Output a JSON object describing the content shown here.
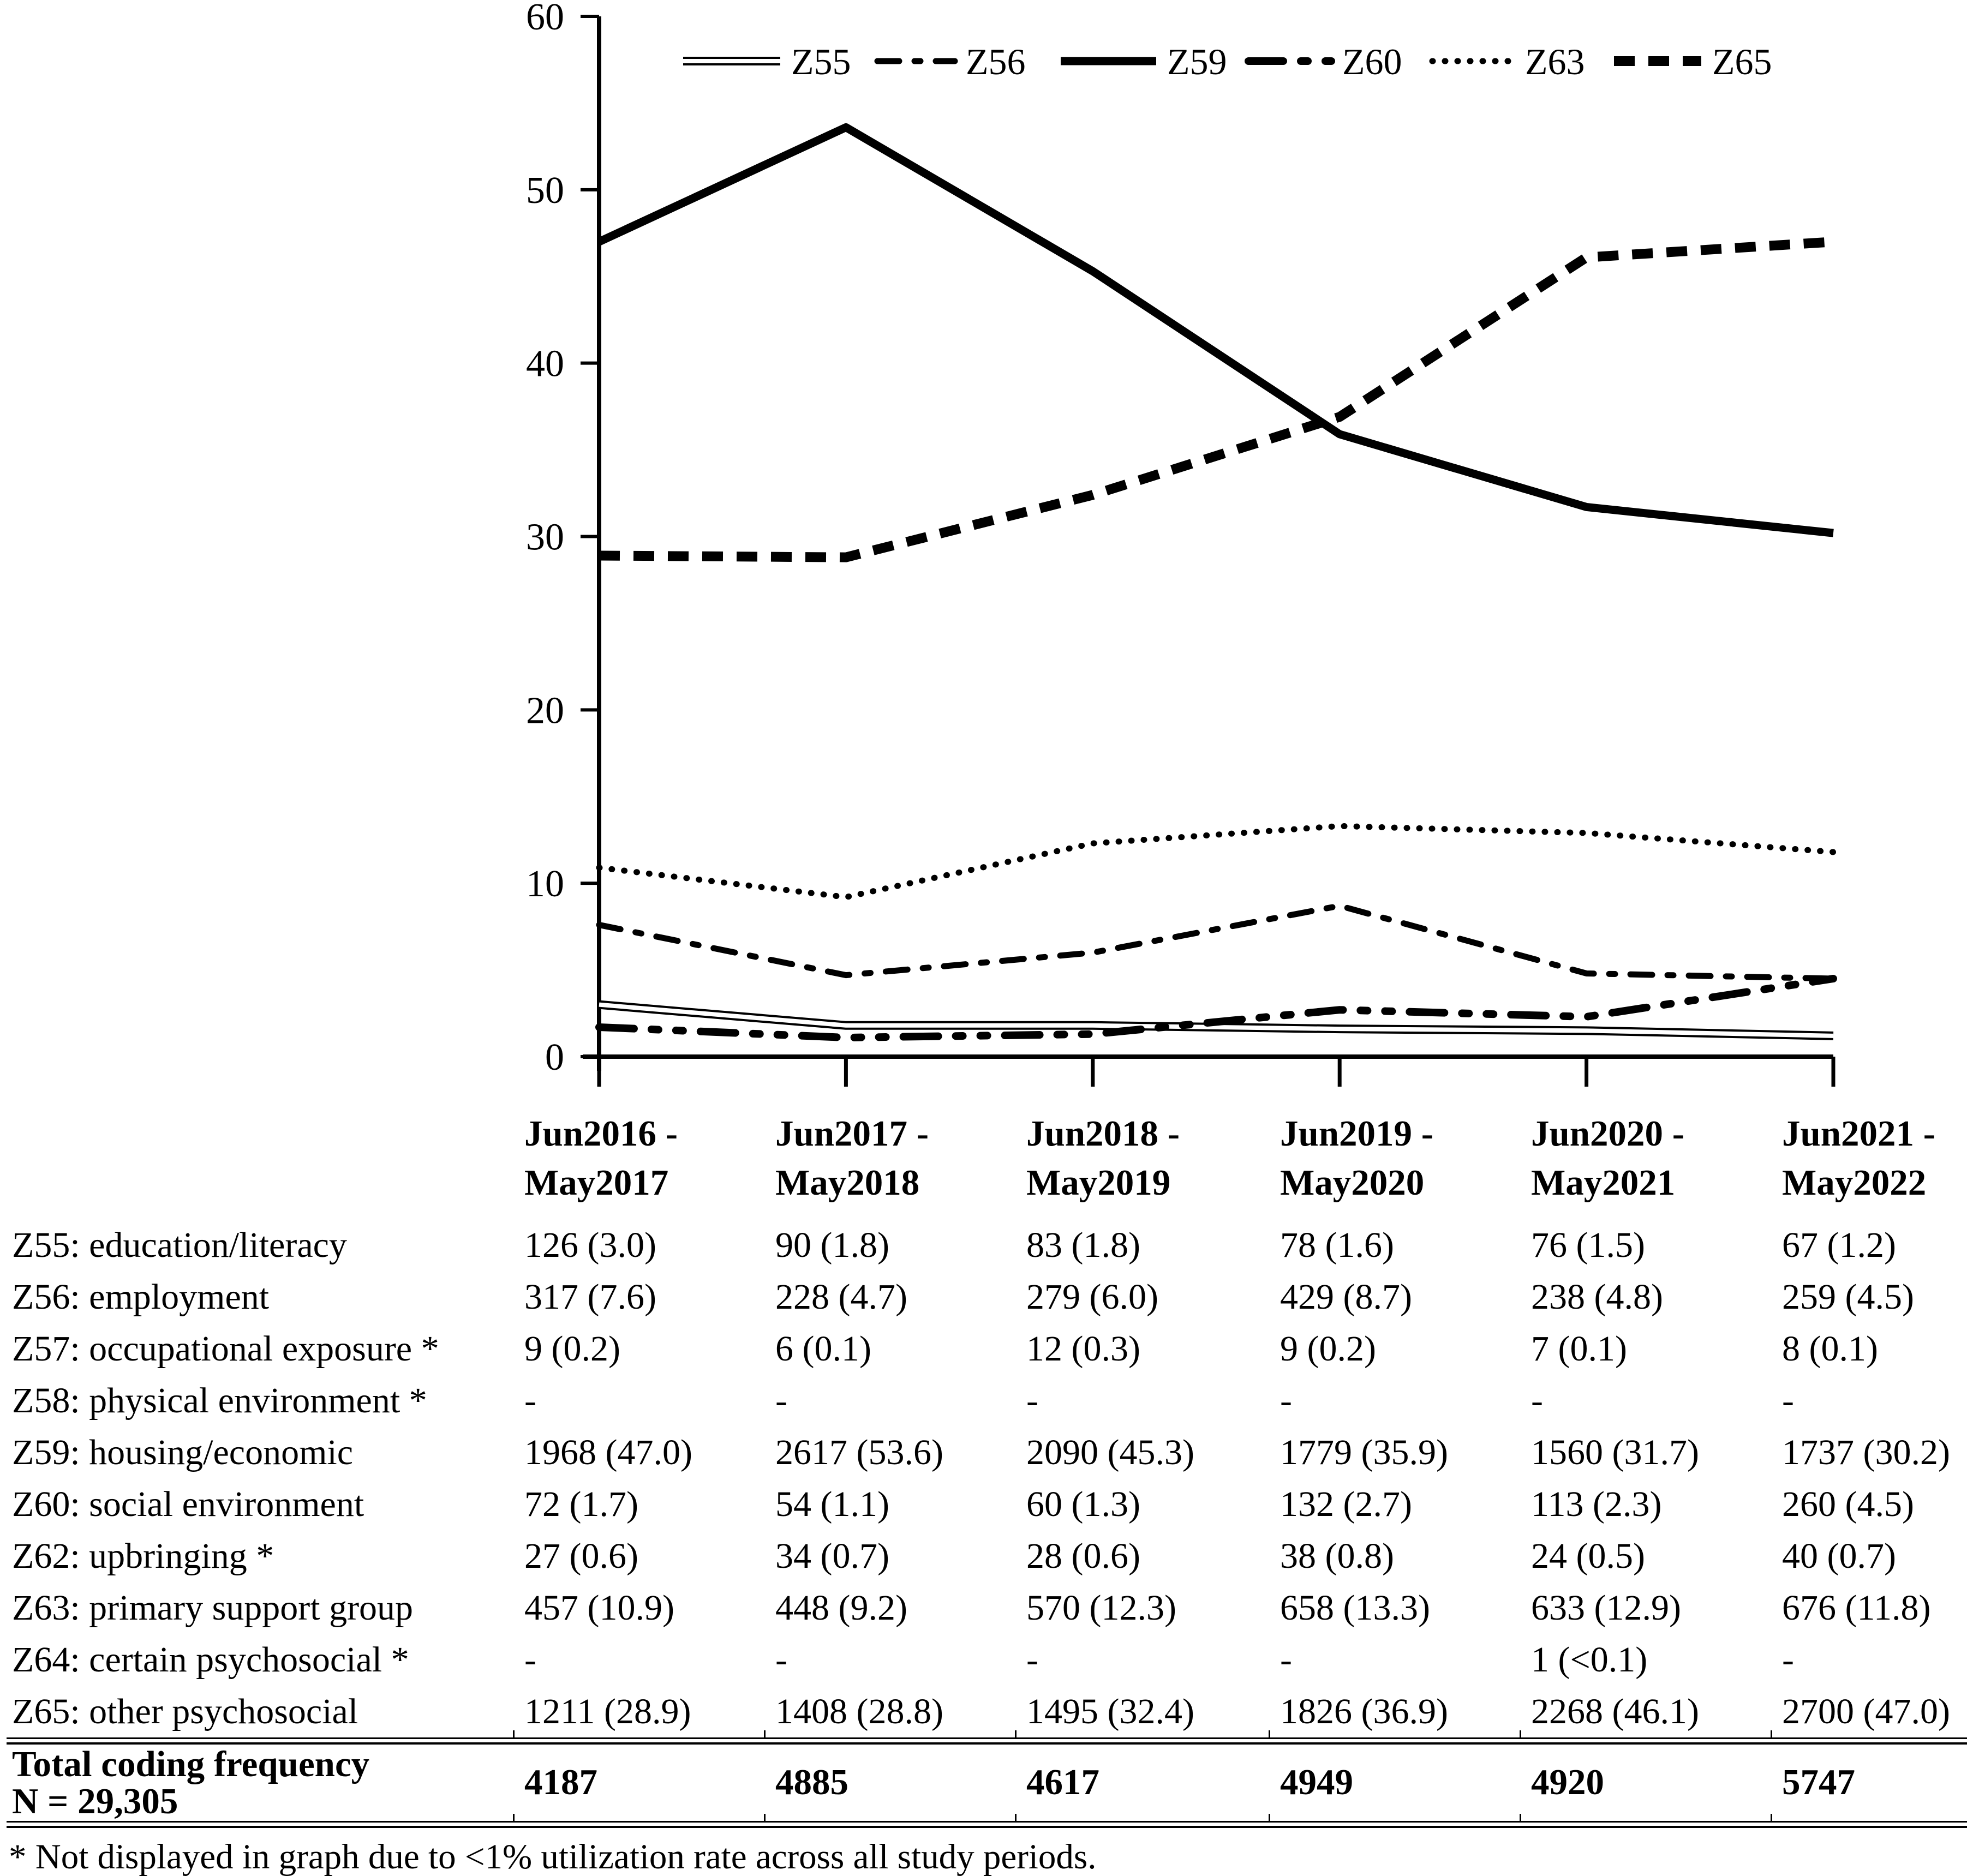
{
  "figure": {
    "footnote": "* Not displayed in graph due to <1% utilization rate across all study periods."
  },
  "chart_data": {
    "type": "line",
    "x": [
      "Jun2016 - May2017",
      "Jun2017 - May2018",
      "Jun2018 - May2019",
      "Jun2019 - May2020",
      "Jun2020 - May2021",
      "Jun2021 - May2022"
    ],
    "ylim": [
      0,
      60
    ],
    "yticks": [
      0,
      10,
      20,
      30,
      40,
      50,
      60
    ],
    "grid": false,
    "legend_position": "top",
    "line_color": "#000000",
    "series": [
      {
        "name": "Z55",
        "style": "double-thin",
        "values": [
          3.0,
          1.8,
          1.8,
          1.6,
          1.5,
          1.2
        ]
      },
      {
        "name": "Z56",
        "style": "dash-dot",
        "values": [
          7.6,
          4.7,
          6.0,
          8.7,
          4.8,
          4.5
        ]
      },
      {
        "name": "Z59",
        "style": "solid-thick",
        "values": [
          47.0,
          53.6,
          45.3,
          35.9,
          31.7,
          30.2
        ]
      },
      {
        "name": "Z60",
        "style": "dash-dot-dot",
        "values": [
          1.7,
          1.1,
          1.3,
          2.7,
          2.3,
          4.5
        ]
      },
      {
        "name": "Z63",
        "style": "dotted",
        "values": [
          10.9,
          9.2,
          12.3,
          13.3,
          12.9,
          11.8
        ]
      },
      {
        "name": "Z65",
        "style": "dashed-heavy",
        "values": [
          28.9,
          28.8,
          32.4,
          36.9,
          46.1,
          47.0
        ]
      }
    ]
  },
  "table": {
    "col_headers": [
      [
        "Jun2016 -",
        "May2017"
      ],
      [
        "Jun2017 -",
        "May2018"
      ],
      [
        "Jun2018 -",
        "May2019"
      ],
      [
        "Jun2019 -",
        "May2020"
      ],
      [
        "Jun2020 -",
        "May2021"
      ],
      [
        "Jun2021 -",
        "May2022"
      ]
    ],
    "rows": [
      {
        "label": "Z55: education/literacy",
        "values": [
          "126 (3.0)",
          "90 (1.8)",
          "83 (1.8)",
          "78 (1.6)",
          "76 (1.5)",
          "67 (1.2)"
        ]
      },
      {
        "label": "Z56: employment",
        "values": [
          "317 (7.6)",
          "228 (4.7)",
          "279 (6.0)",
          "429 (8.7)",
          "238 (4.8)",
          "259 (4.5)"
        ]
      },
      {
        "label": "Z57: occupational exposure *",
        "values": [
          "9 (0.2)",
          "6 (0.1)",
          "12 (0.3)",
          "9 (0.2)",
          "7 (0.1)",
          "8 (0.1)"
        ]
      },
      {
        "label": "Z58: physical environment *",
        "values": [
          "-",
          "-",
          "-",
          "-",
          "-",
          "-"
        ]
      },
      {
        "label": "Z59: housing/economic",
        "values": [
          "1968 (47.0)",
          "2617 (53.6)",
          "2090 (45.3)",
          "1779 (35.9)",
          "1560 (31.7)",
          "1737 (30.2)"
        ]
      },
      {
        "label": "Z60: social environment",
        "values": [
          "72 (1.7)",
          "54 (1.1)",
          "60 (1.3)",
          "132 (2.7)",
          "113 (2.3)",
          "260 (4.5)"
        ]
      },
      {
        "label": "Z62: upbringing *",
        "values": [
          "27 (0.6)",
          "34 (0.7)",
          "28 (0.6)",
          "38 (0.8)",
          "24 (0.5)",
          "40 (0.7)"
        ]
      },
      {
        "label": "Z63: primary support group",
        "values": [
          "457 (10.9)",
          "448 (9.2)",
          "570 (12.3)",
          "658 (13.3)",
          "633 (12.9)",
          "676 (11.8)"
        ]
      },
      {
        "label": "Z64: certain psychosocial *",
        "values": [
          "-",
          "-",
          "-",
          "-",
          "1 (<0.1)",
          "-"
        ]
      },
      {
        "label": "Z65: other psychosocial",
        "values": [
          "1211 (28.9)",
          "1408 (28.8)",
          "1495 (32.4)",
          "1826 (36.9)",
          "2268 (46.1)",
          "2700 (47.0)"
        ]
      }
    ],
    "total_row": {
      "label_line1": "Total coding frequency",
      "label_line2": "N = 29,305",
      "values": [
        "4187",
        "4885",
        "4617",
        "4949",
        "4920",
        "5747"
      ]
    }
  }
}
